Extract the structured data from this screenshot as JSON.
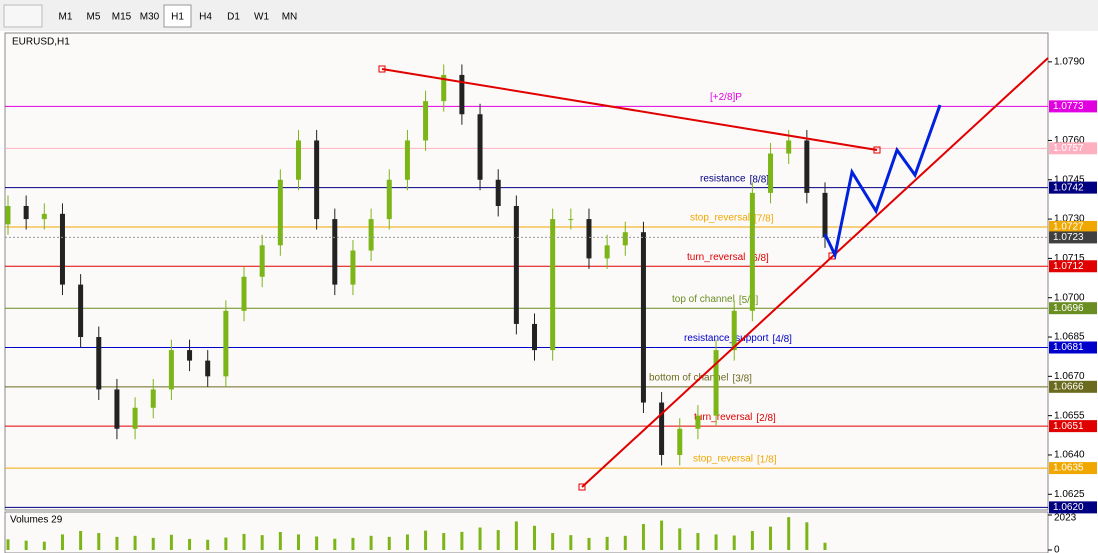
{
  "toolbar": {
    "timeframes": [
      "M1",
      "M5",
      "M15",
      "M30",
      "H1",
      "H4",
      "D1",
      "W1",
      "MN"
    ],
    "active": "H1"
  },
  "chart_data": {
    "type": "candlestick",
    "title": "EURUSD,H1",
    "open": [
      1.0728,
      1.0735,
      1.073,
      1.0732,
      1.0705,
      1.0685,
      1.0665,
      1.065,
      1.0658,
      1.0665,
      1.068,
      1.0676,
      1.067,
      1.0695,
      1.0708,
      1.072,
      1.0745,
      1.076,
      1.073,
      1.0705,
      1.0718,
      1.073,
      1.0745,
      1.076,
      1.0775,
      1.0785,
      1.077,
      1.0745,
      1.0735,
      1.069,
      1.068,
      1.073,
      1.073,
      1.0715,
      1.072,
      1.0725,
      1.066,
      1.064,
      1.065,
      1.0655,
      1.068,
      1.0695,
      1.074,
      1.0755,
      1.076,
      1.074
    ],
    "high": [
      1.0739,
      1.0739,
      1.0736,
      1.0736,
      1.0709,
      1.0689,
      1.0669,
      1.0662,
      1.0669,
      1.0684,
      1.0684,
      1.068,
      1.0699,
      1.0712,
      1.0724,
      1.0749,
      1.0764,
      1.0764,
      1.0734,
      1.0722,
      1.0734,
      1.0749,
      1.0764,
      1.0779,
      1.0789,
      1.0789,
      1.0774,
      1.0749,
      1.0739,
      1.0694,
      1.0734,
      1.0734,
      1.0734,
      1.0724,
      1.0729,
      1.0729,
      1.0664,
      1.0654,
      1.0659,
      1.0684,
      1.0699,
      1.0744,
      1.0759,
      1.0764,
      1.0764,
      1.0744
    ],
    "low": [
      1.0724,
      1.0726,
      1.0726,
      1.0701,
      1.0681,
      1.0661,
      1.0646,
      1.0646,
      1.0654,
      1.0661,
      1.0672,
      1.0666,
      1.0666,
      1.0691,
      1.0704,
      1.0716,
      1.0741,
      1.0726,
      1.0701,
      1.0701,
      1.0714,
      1.0726,
      1.0741,
      1.0756,
      1.0771,
      1.0766,
      1.0741,
      1.0731,
      1.0686,
      1.0676,
      1.0676,
      1.0726,
      1.0711,
      1.0711,
      1.0716,
      1.0656,
      1.0636,
      1.0636,
      1.0646,
      1.0651,
      1.0676,
      1.0691,
      1.0736,
      1.0751,
      1.0736,
      1.0719
    ],
    "close": [
      1.0735,
      1.073,
      1.0732,
      1.0705,
      1.0685,
      1.0665,
      1.065,
      1.0658,
      1.0665,
      1.068,
      1.0676,
      1.067,
      1.0695,
      1.0708,
      1.072,
      1.0745,
      1.076,
      1.073,
      1.0705,
      1.0718,
      1.073,
      1.0745,
      1.076,
      1.0775,
      1.0785,
      1.077,
      1.0745,
      1.0735,
      1.069,
      1.068,
      1.073,
      1.073,
      1.0715,
      1.072,
      1.0725,
      1.066,
      1.064,
      1.065,
      1.0655,
      1.068,
      1.0695,
      1.074,
      1.0755,
      1.076,
      1.074,
      1.0723
    ],
    "up_color": "#7cb518",
    "down_color": "#222222",
    "ylim": [
      1.0619,
      1.0801
    ],
    "yticks": [
      {
        "value": 1.079,
        "label": "1.0790"
      },
      {
        "value": 1.076,
        "label": "1.0760"
      },
      1.0745,
      {
        "value": 1.073,
        "label": "1.0730"
      },
      1.0715,
      {
        "value": 1.07,
        "label": "1.0700"
      },
      1.0685,
      {
        "value": 1.067,
        "label": "1.0670"
      },
      1.0655,
      {
        "value": 1.064,
        "label": "1.0640"
      },
      1.0625
    ],
    "levels": [
      {
        "price": 1.0773,
        "name": "[+2/8]P",
        "color": "#e000e0"
      },
      {
        "price": 1.0757,
        "color": "#ffb0c0"
      },
      {
        "price": 1.0742,
        "name": "resistance",
        "tag": "[8/8]",
        "color": "#000080"
      },
      {
        "price": 1.0727,
        "name": "stop_reversal",
        "tag": "[7/8]",
        "color": "#f0a800"
      },
      {
        "price": 1.0712,
        "name": "turn_reversal",
        "tag": "[6/8]",
        "color": "#e00000"
      },
      {
        "price": 1.0696,
        "name": "top of channel",
        "tag": "[5/8]",
        "color": "#6b8e23"
      },
      {
        "price": 1.0681,
        "name": "resistance_support",
        "tag": "[4/8]",
        "color": "#0000cc"
      },
      {
        "price": 1.0666,
        "name": "bottom of channel",
        "tag": "[3/8]",
        "color": "#6b6b1f"
      },
      {
        "price": 1.0651,
        "name": "turn_reversal",
        "tag": "[2/8]",
        "color": "#e00000"
      },
      {
        "price": 1.0635,
        "name": "stop_reversal",
        "tag": "[1/8]",
        "color": "#f0a800"
      },
      {
        "price": {
          "value": 1.062,
          "label": "1.0620"
        },
        "color": "#000080"
      }
    ],
    "current_price": 1.0723,
    "volume_title": "Volumes 29",
    "volumes": [
      620,
      540,
      480,
      900,
      1100,
      980,
      760,
      820,
      700,
      880,
      640,
      590,
      720,
      930,
      860,
      1040,
      900,
      780,
      650,
      700,
      820,
      760,
      900,
      1120,
      980,
      1050,
      1300,
      1150,
      1650,
      1400,
      980,
      860,
      700,
      760,
      820,
      1500,
      1700,
      1250,
      980,
      900,
      840,
      1100,
      1350,
      1900,
      1600,
      420
    ],
    "volume_color": "#7cb518",
    "volume_ylim": [
      0,
      2023
    ],
    "volume_yticks": [
      0,
      2023
    ]
  }
}
